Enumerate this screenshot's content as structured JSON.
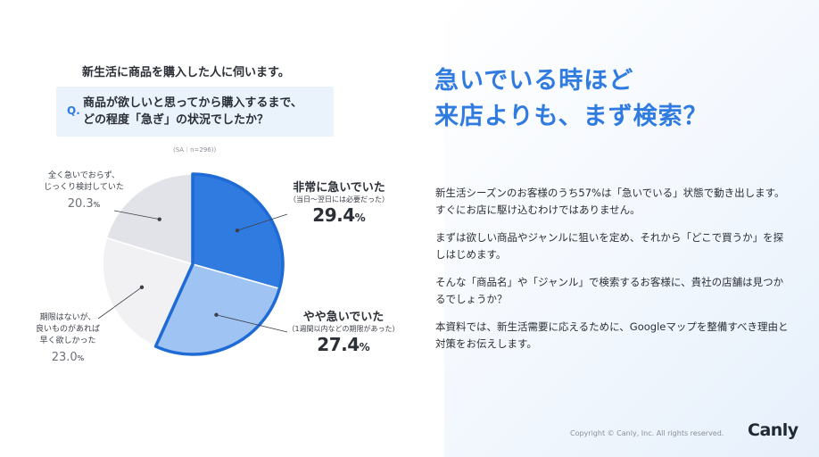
{
  "survey": {
    "title": "新生活に商品を購入した人に伺います。",
    "q_mark": "Q.",
    "question_line1": "商品が欲しいと思ってから購入するまで、",
    "question_line2": "どの程度「急ぎ」の状況でしたか？",
    "sample_note": "(SA｜n=296))"
  },
  "chart_data": {
    "type": "pie",
    "slices": [
      {
        "name": "非常に急いでいた",
        "sub": "（当日〜翌日には必要だった）",
        "value": 29.4,
        "color": "#2f7be0",
        "highlight": true
      },
      {
        "name": "やや急いでいた",
        "sub": "（1週間以内などの期限があった）",
        "value": 27.4,
        "color": "#9fc3f3",
        "highlight": true
      },
      {
        "name_lines": [
          "期限はないが、",
          "良いものがあれば",
          "早く欲しかった"
        ],
        "value": 23.0,
        "color": "#f1f1f3",
        "highlight": false
      },
      {
        "name_lines": [
          "全く急いでおらず、",
          "じっくり検討していた"
        ],
        "value": 20.3,
        "color": "#e1e3e8",
        "highlight": false
      }
    ],
    "labels": {
      "s0_name": "非常に急いでいた",
      "s0_sub": "（当日〜翌日には必要だった）",
      "s0_pct": "29.4",
      "s1_name": "やや急いでいた",
      "s1_sub": "（1週間以内などの期限があった）",
      "s1_pct": "27.4",
      "s2_line1": "期限はないが、",
      "s2_line2": "良いものがあれば",
      "s2_line3": "早く欲しかった",
      "s2_pct": "23.0",
      "s3_line1": "全く急いでおらず、",
      "s3_line2": "じっくり検討していた",
      "s3_pct": "20.3",
      "unit": "%"
    },
    "highlight_outline_color": "#1f6bd6"
  },
  "headline": {
    "line1": "急いでいる時ほど",
    "line2": "来店よりも、まず検索？"
  },
  "body": {
    "p1": "新生活シーズンのお客様のうち57%は「急いでいる」状態で動き出します。すぐにお店に駆け込むわけではありません。",
    "p2": "まずは欲しい商品やジャンルに狙いを定め、それから「どこで買うか」を探しはじめます。",
    "p3": "そんな「商品名」や「ジャンル」で検索するお客様に、貴社の店舗は見つかるでしょうか？",
    "p4": "本資料では、新生活需要に応えるために、Googleマップを整備すべき理由と対策をお伝えします。"
  },
  "footer": {
    "copyright": "Copyright © Canly, Inc. All rights reserved.",
    "logo": "Canly"
  }
}
